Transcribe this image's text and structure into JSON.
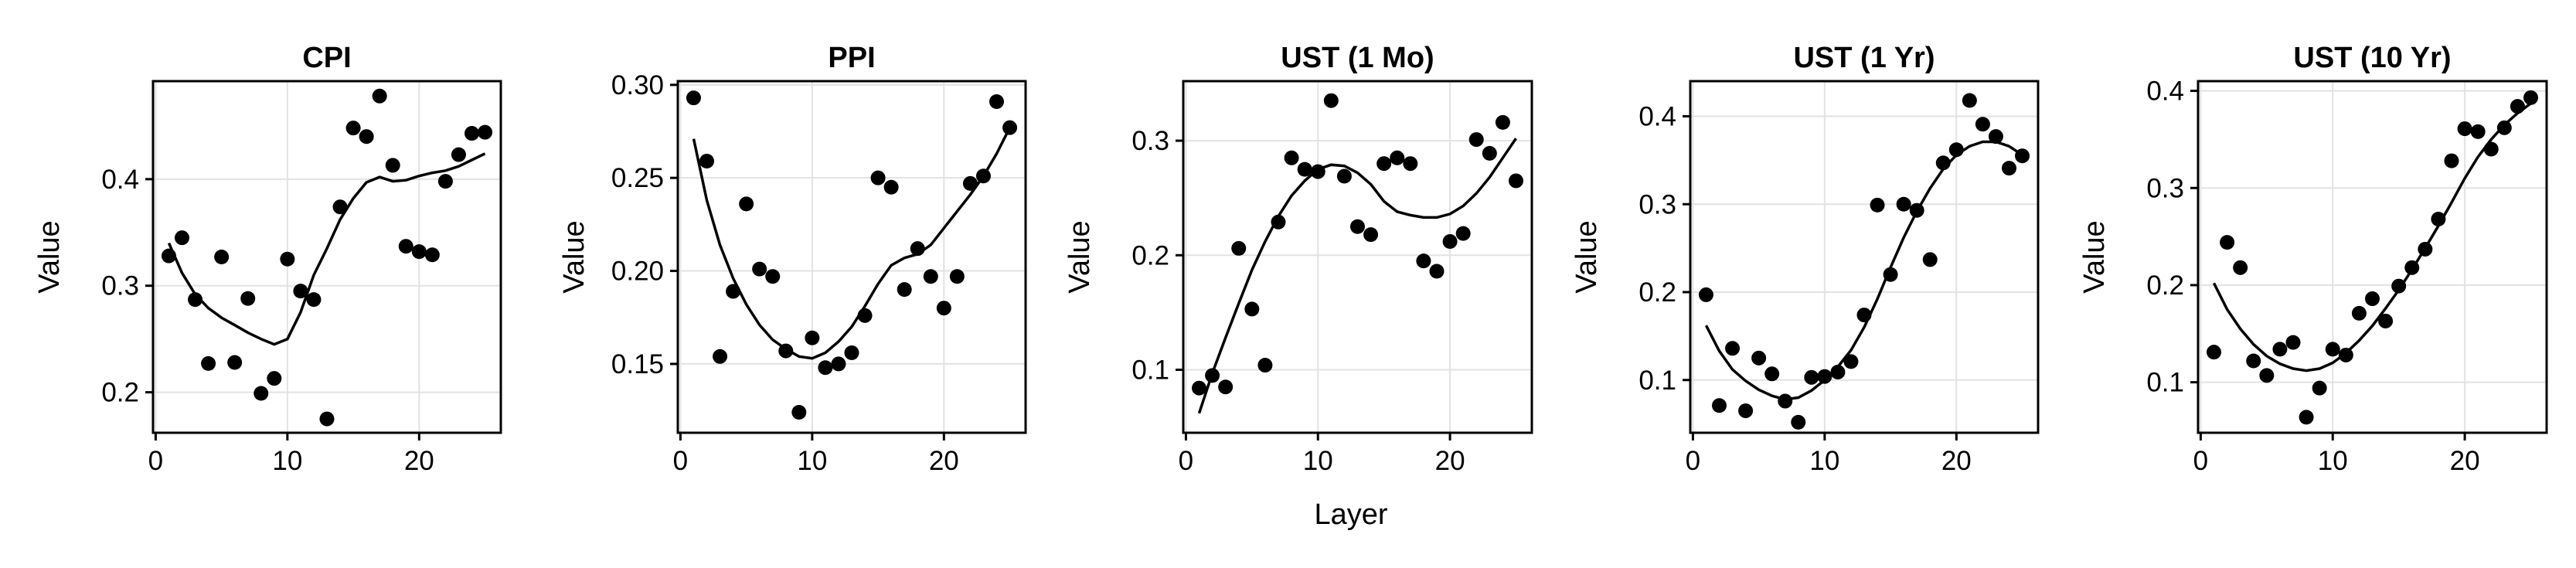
{
  "figure": {
    "xlabel": "Layer",
    "ylabel": "Value",
    "xticks": [
      0,
      10,
      20
    ]
  },
  "chart_data": [
    {
      "type": "scatter",
      "title": "CPI",
      "xlim": [
        -0.2,
        26.2
      ],
      "ylim": [
        0.162,
        0.492
      ],
      "yticks": [
        0.2,
        0.3,
        0.4
      ],
      "ytick_labels": [
        "0.2",
        "0.3",
        "0.4"
      ],
      "points": {
        "x": [
          1,
          2,
          3,
          4,
          5,
          6,
          7,
          8,
          9,
          10,
          11,
          12,
          13,
          14,
          15,
          16,
          17,
          18,
          19,
          20,
          21,
          22,
          23,
          24,
          25
        ],
        "y": [
          0.328,
          0.345,
          0.287,
          0.227,
          0.327,
          0.228,
          0.288,
          0.199,
          0.213,
          0.325,
          0.295,
          0.287,
          0.175,
          0.374,
          0.448,
          0.44,
          0.478,
          0.413,
          0.337,
          0.332,
          0.329,
          0.398,
          0.423,
          0.443,
          0.444
        ]
      },
      "trend": {
        "x": [
          1,
          2,
          3,
          4,
          5,
          6,
          7,
          8,
          9,
          10,
          11,
          12,
          13,
          14,
          15,
          16,
          17,
          18,
          19,
          20,
          21,
          22,
          23,
          24,
          25
        ],
        "y": [
          0.34,
          0.312,
          0.292,
          0.279,
          0.27,
          0.263,
          0.256,
          0.25,
          0.245,
          0.25,
          0.275,
          0.31,
          0.335,
          0.362,
          0.382,
          0.397,
          0.402,
          0.398,
          0.399,
          0.403,
          0.406,
          0.408,
          0.412,
          0.418,
          0.424
        ]
      }
    },
    {
      "type": "scatter",
      "title": "PPI",
      "xlim": [
        -0.2,
        26.2
      ],
      "ylim": [
        0.113,
        0.302
      ],
      "yticks": [
        0.15,
        0.2,
        0.25,
        0.3
      ],
      "ytick_labels": [
        "0.15",
        "0.20",
        "0.25",
        "0.30"
      ],
      "points": {
        "x": [
          1,
          2,
          3,
          4,
          5,
          6,
          7,
          8,
          9,
          10,
          11,
          12,
          13,
          14,
          15,
          16,
          17,
          18,
          19,
          20,
          21,
          22,
          23,
          24,
          25
        ],
        "y": [
          0.293,
          0.259,
          0.154,
          0.189,
          0.236,
          0.201,
          0.197,
          0.157,
          0.124,
          0.164,
          0.148,
          0.15,
          0.156,
          0.176,
          0.25,
          0.245,
          0.19,
          0.212,
          0.197,
          0.18,
          0.197,
          0.247,
          0.251,
          0.291,
          0.277
        ]
      },
      "trend": {
        "x": [
          1,
          2,
          3,
          4,
          5,
          6,
          7,
          8,
          9,
          10,
          11,
          12,
          13,
          14,
          15,
          16,
          17,
          18,
          19,
          20,
          21,
          22,
          23,
          24,
          25
        ],
        "y": [
          0.271,
          0.238,
          0.214,
          0.196,
          0.182,
          0.171,
          0.163,
          0.158,
          0.154,
          0.153,
          0.156,
          0.162,
          0.17,
          0.181,
          0.193,
          0.203,
          0.207,
          0.209,
          0.214,
          0.223,
          0.232,
          0.241,
          0.251,
          0.263,
          0.277
        ]
      }
    },
    {
      "type": "scatter",
      "title": "UST (1 Mo)",
      "xlabel": "Layer",
      "xlim": [
        -0.2,
        26.2
      ],
      "ylim": [
        0.045,
        0.352
      ],
      "yticks": [
        0.1,
        0.2,
        0.3
      ],
      "ytick_labels": [
        "0.1",
        "0.2",
        "0.3"
      ],
      "points": {
        "x": [
          1,
          2,
          3,
          4,
          5,
          6,
          7,
          8,
          9,
          10,
          11,
          12,
          13,
          14,
          15,
          16,
          17,
          18,
          19,
          20,
          21,
          22,
          23,
          24,
          25
        ],
        "y": [
          0.084,
          0.095,
          0.085,
          0.206,
          0.153,
          0.104,
          0.229,
          0.285,
          0.275,
          0.273,
          0.335,
          0.269,
          0.225,
          0.218,
          0.28,
          0.285,
          0.28,
          0.195,
          0.186,
          0.212,
          0.219,
          0.301,
          0.289,
          0.316,
          0.265
        ]
      },
      "trend": {
        "x": [
          1,
          2,
          3,
          4,
          5,
          6,
          7,
          8,
          9,
          10,
          11,
          12,
          13,
          14,
          15,
          16,
          17,
          18,
          19,
          20,
          21,
          22,
          23,
          24,
          25
        ],
        "y": [
          0.062,
          0.097,
          0.128,
          0.158,
          0.187,
          0.212,
          0.234,
          0.252,
          0.265,
          0.275,
          0.279,
          0.278,
          0.272,
          0.262,
          0.247,
          0.238,
          0.235,
          0.233,
          0.233,
          0.236,
          0.243,
          0.254,
          0.268,
          0.285,
          0.302
        ]
      }
    },
    {
      "type": "scatter",
      "title": "UST (1 Yr)",
      "xlim": [
        -0.2,
        26.2
      ],
      "ylim": [
        0.04,
        0.44
      ],
      "yticks": [
        0.1,
        0.2,
        0.3,
        0.4
      ],
      "ytick_labels": [
        "0.1",
        "0.2",
        "0.3",
        "0.4"
      ],
      "points": {
        "x": [
          1,
          2,
          3,
          4,
          5,
          6,
          7,
          8,
          9,
          10,
          11,
          12,
          13,
          14,
          15,
          16,
          17,
          18,
          19,
          20,
          21,
          22,
          23,
          24,
          25
        ],
        "y": [
          0.197,
          0.071,
          0.136,
          0.065,
          0.125,
          0.107,
          0.076,
          0.052,
          0.103,
          0.104,
          0.109,
          0.121,
          0.174,
          0.299,
          0.22,
          0.3,
          0.293,
          0.237,
          0.347,
          0.362,
          0.418,
          0.391,
          0.377,
          0.341,
          0.355
        ]
      },
      "trend": {
        "x": [
          1,
          2,
          3,
          4,
          5,
          6,
          7,
          8,
          9,
          10,
          11,
          12,
          13,
          14,
          15,
          16,
          17,
          18,
          19,
          20,
          21,
          22,
          23,
          24,
          25
        ],
        "y": [
          0.162,
          0.133,
          0.112,
          0.099,
          0.089,
          0.082,
          0.078,
          0.08,
          0.088,
          0.1,
          0.115,
          0.134,
          0.16,
          0.192,
          0.228,
          0.262,
          0.292,
          0.318,
          0.34,
          0.356,
          0.366,
          0.371,
          0.371,
          0.366,
          0.356
        ]
      }
    },
    {
      "type": "scatter",
      "title": "UST (10 Yr)",
      "xlim": [
        -0.2,
        26.2
      ],
      "ylim": [
        0.048,
        0.41
      ],
      "yticks": [
        0.1,
        0.2,
        0.3,
        0.4
      ],
      "ytick_labels": [
        "0.1",
        "0.2",
        "0.3",
        "0.4"
      ],
      "points": {
        "x": [
          1,
          2,
          3,
          4,
          5,
          6,
          7,
          8,
          9,
          10,
          11,
          12,
          13,
          14,
          15,
          16,
          17,
          18,
          19,
          20,
          21,
          22,
          23,
          24,
          25
        ],
        "y": [
          0.131,
          0.244,
          0.218,
          0.122,
          0.107,
          0.134,
          0.141,
          0.064,
          0.094,
          0.134,
          0.128,
          0.171,
          0.186,
          0.163,
          0.199,
          0.218,
          0.237,
          0.268,
          0.328,
          0.361,
          0.358,
          0.34,
          0.362,
          0.384,
          0.393
        ]
      },
      "trend": {
        "x": [
          1,
          2,
          3,
          4,
          5,
          6,
          7,
          8,
          9,
          10,
          11,
          12,
          13,
          14,
          15,
          16,
          17,
          18,
          19,
          20,
          21,
          22,
          23,
          24,
          25
        ],
        "y": [
          0.202,
          0.175,
          0.155,
          0.139,
          0.127,
          0.119,
          0.114,
          0.112,
          0.114,
          0.12,
          0.13,
          0.143,
          0.158,
          0.176,
          0.195,
          0.216,
          0.238,
          0.261,
          0.285,
          0.31,
          0.332,
          0.35,
          0.365,
          0.377,
          0.387
        ]
      }
    }
  ]
}
